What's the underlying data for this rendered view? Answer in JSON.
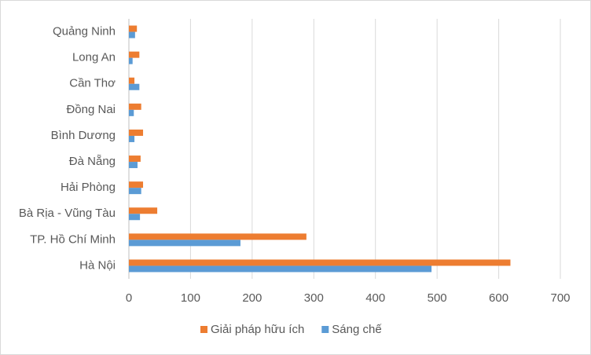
{
  "chart_data": {
    "type": "hbar",
    "categories": [
      "Quảng Ninh",
      "Long An",
      "Cần Thơ",
      "Đồng Nai",
      "Bình Dương",
      "Đà Nẵng",
      "Hải Phòng",
      "Bà Rịa - Vũng Tàu",
      "TP. Hồ Chí Minh",
      "Hà Nội"
    ],
    "series": [
      {
        "name": "Giải pháp hữu ích",
        "color": "#ed7d31",
        "values": [
          13,
          17,
          9,
          20,
          23,
          19,
          23,
          46,
          288,
          619
        ]
      },
      {
        "name": "Sáng chế",
        "color": "#5b9bd5",
        "values": [
          10,
          6,
          17,
          8,
          9,
          14,
          20,
          18,
          181,
          491
        ]
      }
    ],
    "xlim": [
      0,
      700
    ],
    "xticks": [
      0,
      100,
      200,
      300,
      400,
      500,
      600,
      700
    ],
    "grid": true,
    "legend": "bottom"
  }
}
